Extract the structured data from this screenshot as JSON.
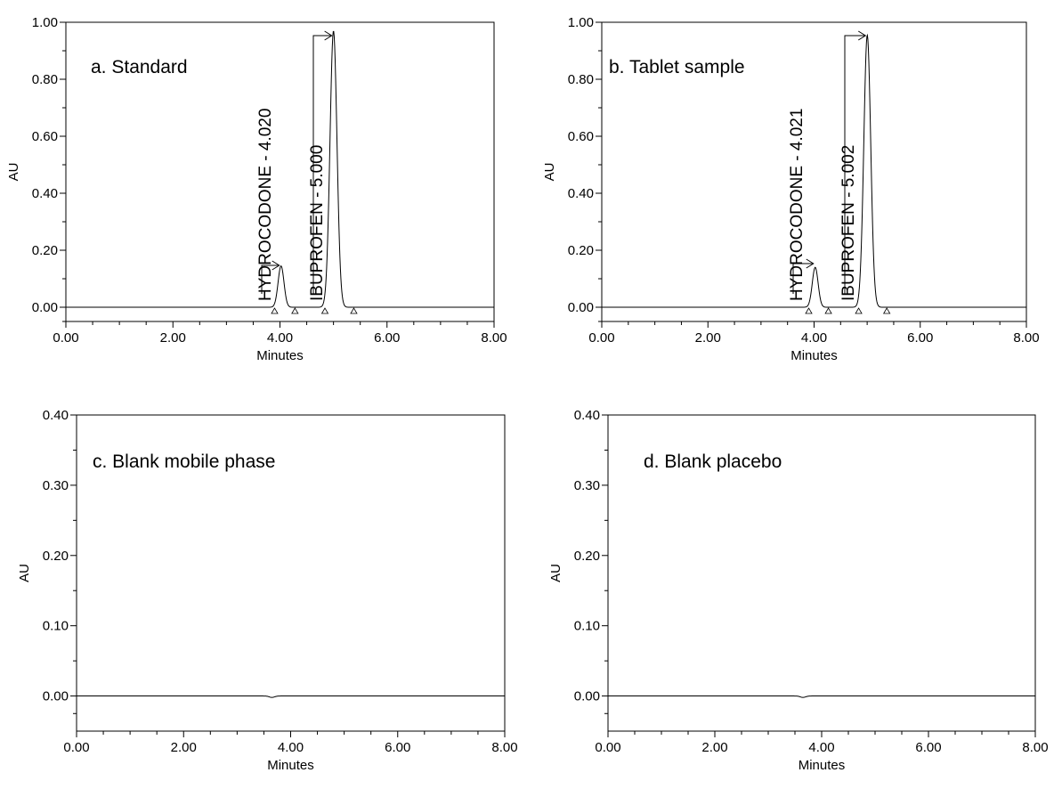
{
  "colors": {
    "trace": "#000000",
    "axis": "#000000",
    "background": "#ffffff"
  },
  "chart_data": [
    {
      "type": "line",
      "title": "a. Standard",
      "xlabel": "Minutes",
      "ylabel": "AU",
      "xlim": [
        0,
        8
      ],
      "ylim": [
        -0.05,
        1.0
      ],
      "x_ticks": [
        "0.00",
        "2.00",
        "4.00",
        "6.00",
        "8.00"
      ],
      "y_ticks": [
        "0.00",
        "0.20",
        "0.40",
        "0.60",
        "0.80",
        "1.00"
      ],
      "grid": false,
      "peaks": [
        {
          "name": "HYDROCODONE",
          "label": "HYDROCODONE - 4.020",
          "rt": 4.02,
          "height": 0.145,
          "start": 3.9,
          "end": 4.28
        },
        {
          "name": "IBUPROFEN",
          "label": "IBUPROFEN - 5.000",
          "rt": 5.0,
          "height": 0.97,
          "start": 4.84,
          "end": 5.38
        }
      ]
    },
    {
      "type": "line",
      "title": "b. Tablet sample",
      "xlabel": "Minutes",
      "ylabel": "AU",
      "xlim": [
        0,
        8
      ],
      "ylim": [
        -0.05,
        1.0
      ],
      "x_ticks": [
        "0.00",
        "2.00",
        "4.00",
        "6.00",
        "8.00"
      ],
      "y_ticks": [
        "0.00",
        "0.20",
        "0.40",
        "0.60",
        "0.80",
        "1.00"
      ],
      "grid": false,
      "peaks": [
        {
          "name": "HYDROCODONE",
          "label": "HYDROCODONE - 4.021",
          "rt": 4.021,
          "height": 0.14,
          "start": 3.9,
          "end": 4.27
        },
        {
          "name": "IBUPROFEN",
          "label": "IBUPROFEN - 5.002",
          "rt": 5.002,
          "height": 0.955,
          "start": 4.84,
          "end": 5.37
        }
      ]
    },
    {
      "type": "line",
      "title": "c. Blank mobile phase",
      "xlabel": "Minutes",
      "ylabel": "AU",
      "xlim": [
        0,
        8
      ],
      "ylim": [
        -0.05,
        0.4
      ],
      "x_ticks": [
        "0.00",
        "2.00",
        "4.00",
        "6.00",
        "8.00"
      ],
      "y_ticks": [
        "0.00",
        "0.10",
        "0.20",
        "0.30",
        "0.40"
      ],
      "grid": false,
      "peaks": [],
      "baseline_dip": {
        "at": 3.65,
        "depth": 0.002
      }
    },
    {
      "type": "line",
      "title": "d. Blank placebo",
      "xlabel": "Minutes",
      "ylabel": "AU",
      "xlim": [
        0,
        8
      ],
      "ylim": [
        -0.05,
        0.4
      ],
      "x_ticks": [
        "0.00",
        "2.00",
        "4.00",
        "6.00",
        "8.00"
      ],
      "y_ticks": [
        "0.00",
        "0.10",
        "0.20",
        "0.30",
        "0.40"
      ],
      "grid": false,
      "peaks": [],
      "baseline_dip": {
        "at": 3.65,
        "depth": 0.002
      }
    }
  ]
}
